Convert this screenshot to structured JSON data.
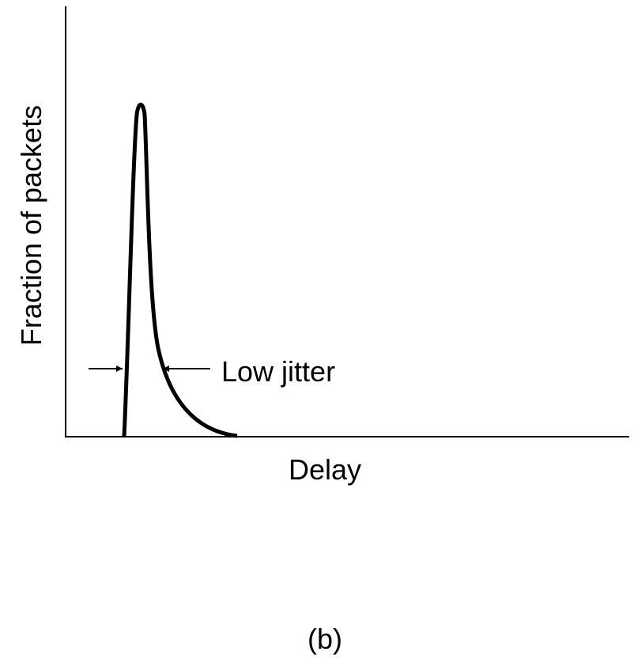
{
  "diagram": {
    "y_axis_label": "Fraction of packets",
    "x_axis_label": "Delay",
    "annotation": "Low jitter",
    "caption": "(b)"
  }
}
